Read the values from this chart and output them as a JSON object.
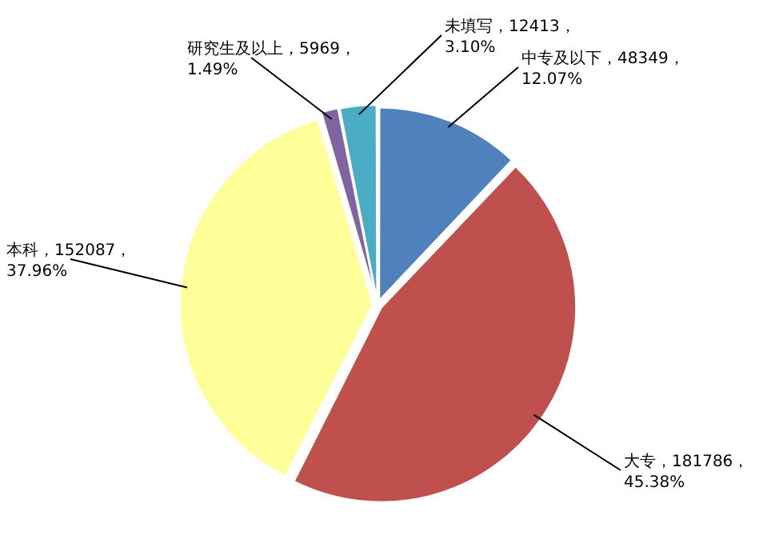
{
  "chart_data": {
    "type": "pie",
    "categories": [
      "中专及以下",
      "大专",
      "本科",
      "研究生及以上",
      "未填写"
    ],
    "values": [
      12.07,
      45.38,
      37.96,
      1.49,
      3.1
    ],
    "value_labels": [
      "48349，12.07%",
      "181786，45.38%",
      "152087，37.96%",
      "5969，1.49%",
      "12413，3.10%"
    ],
    "colors": [
      "#4f81bd",
      "#c0504d",
      "#ffff99",
      "#8064a2",
      "#4bacc6"
    ],
    "legend": false
  }
}
